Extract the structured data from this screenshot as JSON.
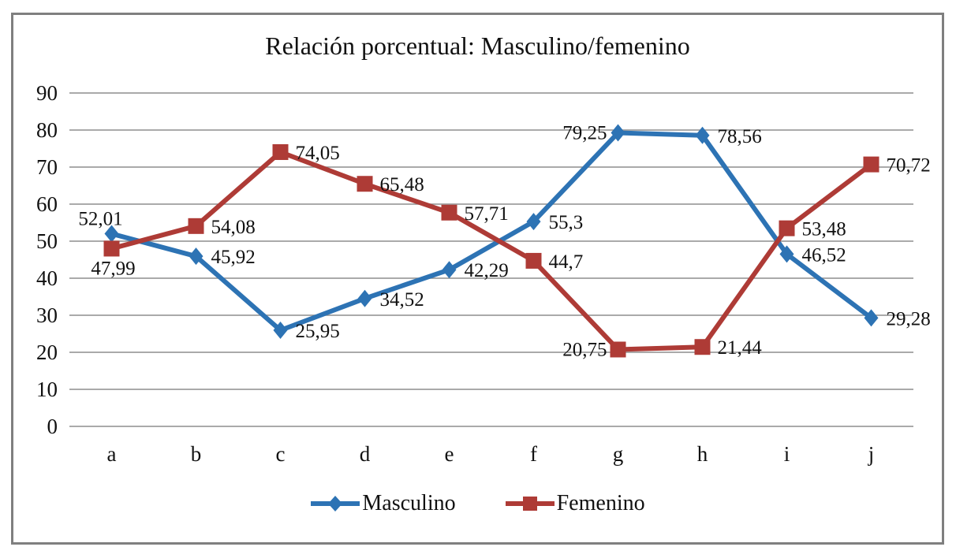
{
  "chart_data": {
    "type": "line",
    "title": "Relación porcentual: Masculino/femenino",
    "categories": [
      "a",
      "b",
      "c",
      "d",
      "e",
      "f",
      "g",
      "h",
      "i",
      "j"
    ],
    "series": [
      {
        "name": "Masculino",
        "color": "#2D73B4",
        "marker": "diamond",
        "values": [
          52.01,
          45.92,
          25.95,
          34.52,
          42.29,
          55.3,
          79.25,
          78.56,
          46.52,
          29.28
        ],
        "point_labels": [
          "52,01",
          "45,92",
          "25,95",
          "34,52",
          "42,29",
          "55,3",
          "79,25",
          "78,56",
          "46,52",
          "29,28"
        ],
        "label_sides": [
          "above-left",
          "right",
          "right",
          "right",
          "right",
          "right",
          "left",
          "right",
          "right",
          "right"
        ]
      },
      {
        "name": "Femenino",
        "color": "#AE3B36",
        "marker": "square",
        "values": [
          47.99,
          54.08,
          74.05,
          65.48,
          57.71,
          44.7,
          20.75,
          21.44,
          53.48,
          70.72
        ],
        "point_labels": [
          "47,99",
          "54,08",
          "74,05",
          "65,48",
          "57,71",
          "44,7",
          "20,75",
          "21,44",
          "53,48",
          "70,72"
        ],
        "label_sides": [
          "below-left",
          "right",
          "right",
          "right",
          "right",
          "right",
          "left",
          "right",
          "right",
          "right"
        ]
      }
    ],
    "ylim": [
      0,
      90
    ],
    "ytick_step": 10,
    "ytick_labels": [
      "0",
      "10",
      "20",
      "30",
      "40",
      "50",
      "60",
      "70",
      "80",
      "90"
    ],
    "decimal_separator": ",",
    "grid": "horizontal",
    "legend_position": "bottom",
    "frame_border_color": "#7F7F7F",
    "gridline_color": "#8E8E8E",
    "text_color": "#111111"
  }
}
